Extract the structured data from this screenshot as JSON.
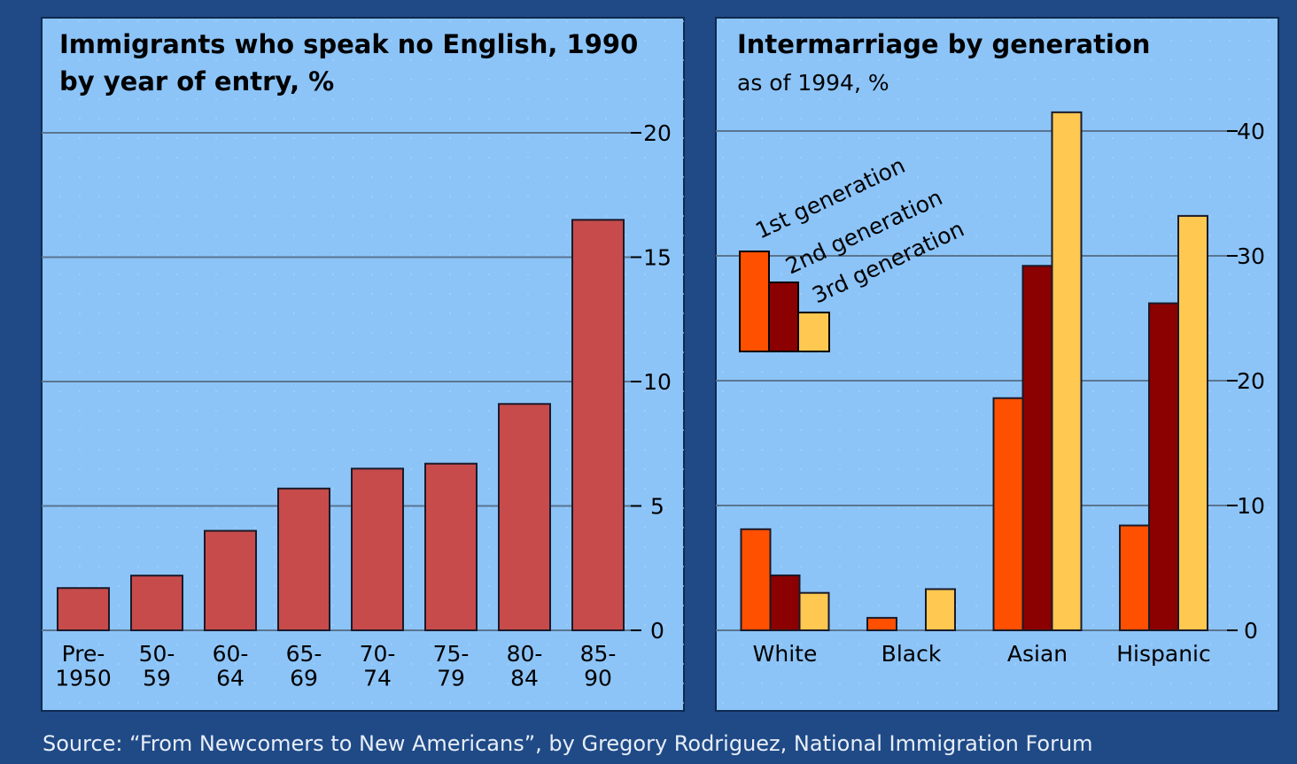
{
  "chart_data": [
    {
      "type": "bar",
      "title": "Immigrants who speak no English, 1990",
      "subtitle": "by year of entry, %",
      "categories": [
        "Pre-\n1950",
        "50-\n59",
        "60-\n64",
        "65-\n69",
        "70-\n74",
        "75-\n79",
        "80-\n84",
        "85-\n90"
      ],
      "values": [
        1.7,
        2.2,
        4.0,
        5.7,
        6.5,
        6.7,
        9.1,
        16.5
      ],
      "color": "#c84b4b",
      "ylim": [
        0,
        20
      ],
      "yticks": [
        0,
        5,
        10,
        15,
        20
      ],
      "grid": true
    },
    {
      "type": "grouped_bar",
      "title": "Intermarriage by generation",
      "subtitle": "as of 1994, %",
      "categories": [
        "White",
        "Black",
        "Asian",
        "Hispanic"
      ],
      "series": [
        {
          "name": "1st generation",
          "color": "#ff5000",
          "values": [
            8.1,
            1.0,
            18.6,
            8.4
          ]
        },
        {
          "name": "2nd generation",
          "color": "#8b0000",
          "values": [
            4.4,
            null,
            29.2,
            26.2
          ]
        },
        {
          "name": "3rd generation",
          "color": "#ffc850",
          "values": [
            3.0,
            3.3,
            41.5,
            33.2
          ]
        }
      ],
      "ylim": [
        0,
        40
      ],
      "yticks": [
        0,
        10,
        20,
        30,
        40
      ],
      "grid": true,
      "legend": "top-left"
    }
  ],
  "source": "Source: “From Newcomers to New Americans”, by Gregory Rodriguez, National Immigration Forum"
}
